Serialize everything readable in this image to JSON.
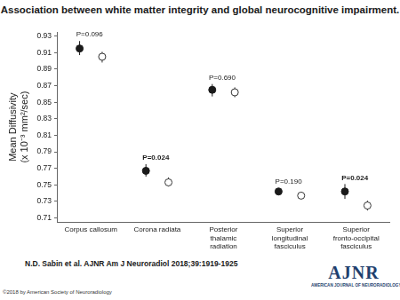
{
  "chart_data": {
    "type": "scatter",
    "title": "Association between white matter integrity and global neurocognitive impairment.",
    "y_label": [
      "Mean Diffusivity",
      "(x 10⁻³ mm²/sec)"
    ],
    "categories": [
      "Corpus callosum",
      "Corona radiata",
      "Posterior thalamic radiation",
      "Superior longitudinal fasciculus",
      "Superior fronto-occipital fasciculus"
    ],
    "series": [
      {
        "color": "#1a1a1a",
        "marker": "filled_circle",
        "values": [
          0.915,
          0.767,
          0.865,
          0.742,
          0.742
        ],
        "error_low": [
          0.907,
          0.76,
          0.857,
          0.738,
          0.733
        ],
        "error_high": [
          0.924,
          0.775,
          0.872,
          0.746,
          0.751
        ]
      },
      {
        "color": "#333333",
        "marker": "open_circle",
        "values": [
          0.905,
          0.753,
          0.862,
          0.737,
          0.725
        ],
        "error_low": [
          0.898,
          0.748,
          0.856,
          0.733,
          0.719
        ],
        "error_high": [
          0.911,
          0.759,
          0.868,
          0.741,
          0.731
        ]
      }
    ],
    "annotations": [
      "P=0.096",
      "P=0.024",
      "P=0.690",
      "P=0.190",
      "P=0.024"
    ],
    "ylim": [
      0.705,
      0.935
    ],
    "yticks": [
      0.71,
      0.73,
      0.75,
      0.77,
      0.79,
      0.81,
      0.83,
      0.85,
      0.87,
      0.89,
      0.91,
      0.93
    ],
    "grid": false
  },
  "citation": "N.D. Sabin et al. AJNR Am J Neuroradiol 2018;39:1919-1925",
  "copyright": "©2018 by American Society of Neuroradiology",
  "logo": {
    "title": "AJNR",
    "subtitle": "AMERICAN JOURNAL OF NEURORADIOLOGY"
  }
}
